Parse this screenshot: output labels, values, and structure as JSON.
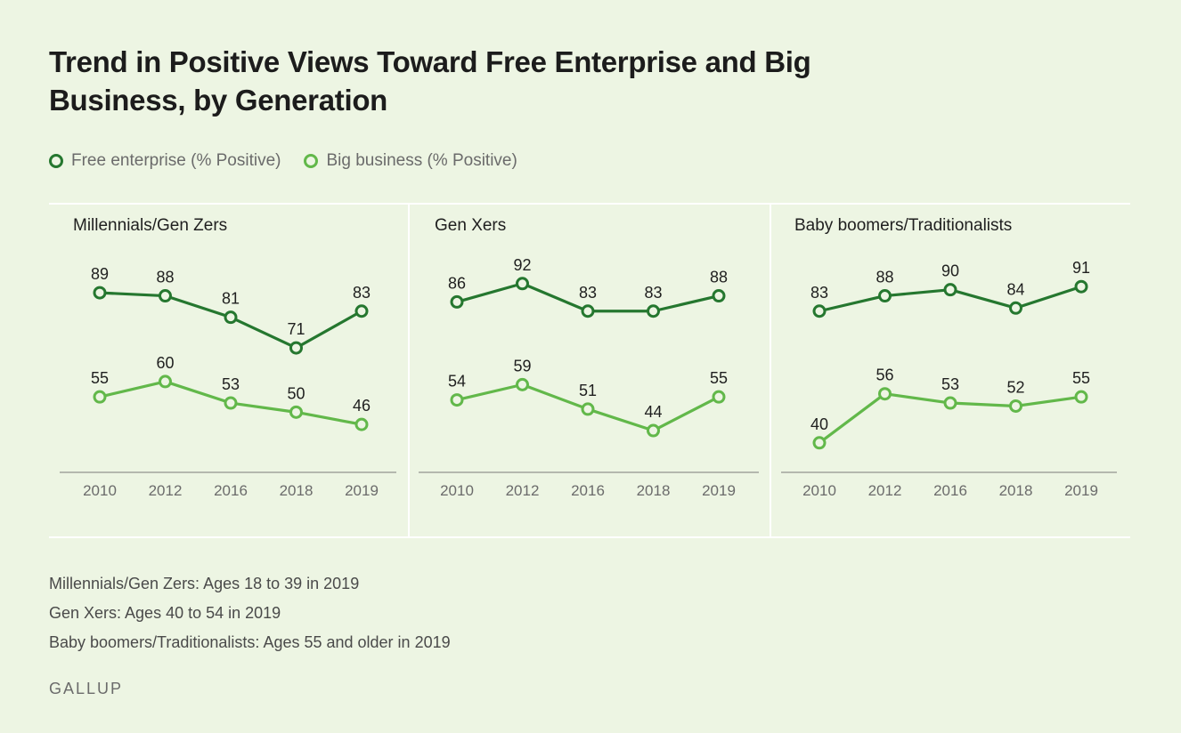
{
  "title": "Trend in Positive Views Toward Free Enterprise and Big Business, by Generation",
  "colors": {
    "free_enterprise": "#25772f",
    "big_business": "#62b84a",
    "background": "#edf5e3"
  },
  "legend": {
    "items": [
      {
        "label": "Free enterprise (% Positive)",
        "color": "#25772f"
      },
      {
        "label": "Big business (% Positive)",
        "color": "#62b84a"
      }
    ]
  },
  "chart_data": [
    {
      "type": "line",
      "title": "Millennials/Gen Zers",
      "categories": [
        "2010",
        "2012",
        "2016",
        "2018",
        "2019"
      ],
      "series": [
        {
          "name": "Free enterprise (% Positive)",
          "values": [
            89,
            88,
            81,
            71,
            83
          ]
        },
        {
          "name": "Big business (% Positive)",
          "values": [
            55,
            60,
            53,
            50,
            46
          ]
        }
      ],
      "ylim": [
        35,
        96
      ]
    },
    {
      "type": "line",
      "title": "Gen Xers",
      "categories": [
        "2010",
        "2012",
        "2016",
        "2018",
        "2019"
      ],
      "series": [
        {
          "name": "Free enterprise (% Positive)",
          "values": [
            86,
            92,
            83,
            83,
            88
          ]
        },
        {
          "name": "Big business (% Positive)",
          "values": [
            54,
            59,
            51,
            44,
            55
          ]
        }
      ],
      "ylim": [
        35,
        96
      ]
    },
    {
      "type": "line",
      "title": "Baby boomers/Traditionalists",
      "categories": [
        "2010",
        "2012",
        "2016",
        "2018",
        "2019"
      ],
      "series": [
        {
          "name": "Free enterprise (% Positive)",
          "values": [
            83,
            88,
            90,
            84,
            91
          ]
        },
        {
          "name": "Big business (% Positive)",
          "values": [
            40,
            56,
            53,
            52,
            55
          ]
        }
      ],
      "ylim": [
        35,
        96
      ]
    }
  ],
  "notes": [
    "Millennials/Gen Zers: Ages 18 to 39 in 2019",
    "Gen Xers: Ages 40 to 54 in 2019",
    "Baby boomers/Traditionalists: Ages 55 and older in 2019"
  ],
  "brand": "GALLUP"
}
